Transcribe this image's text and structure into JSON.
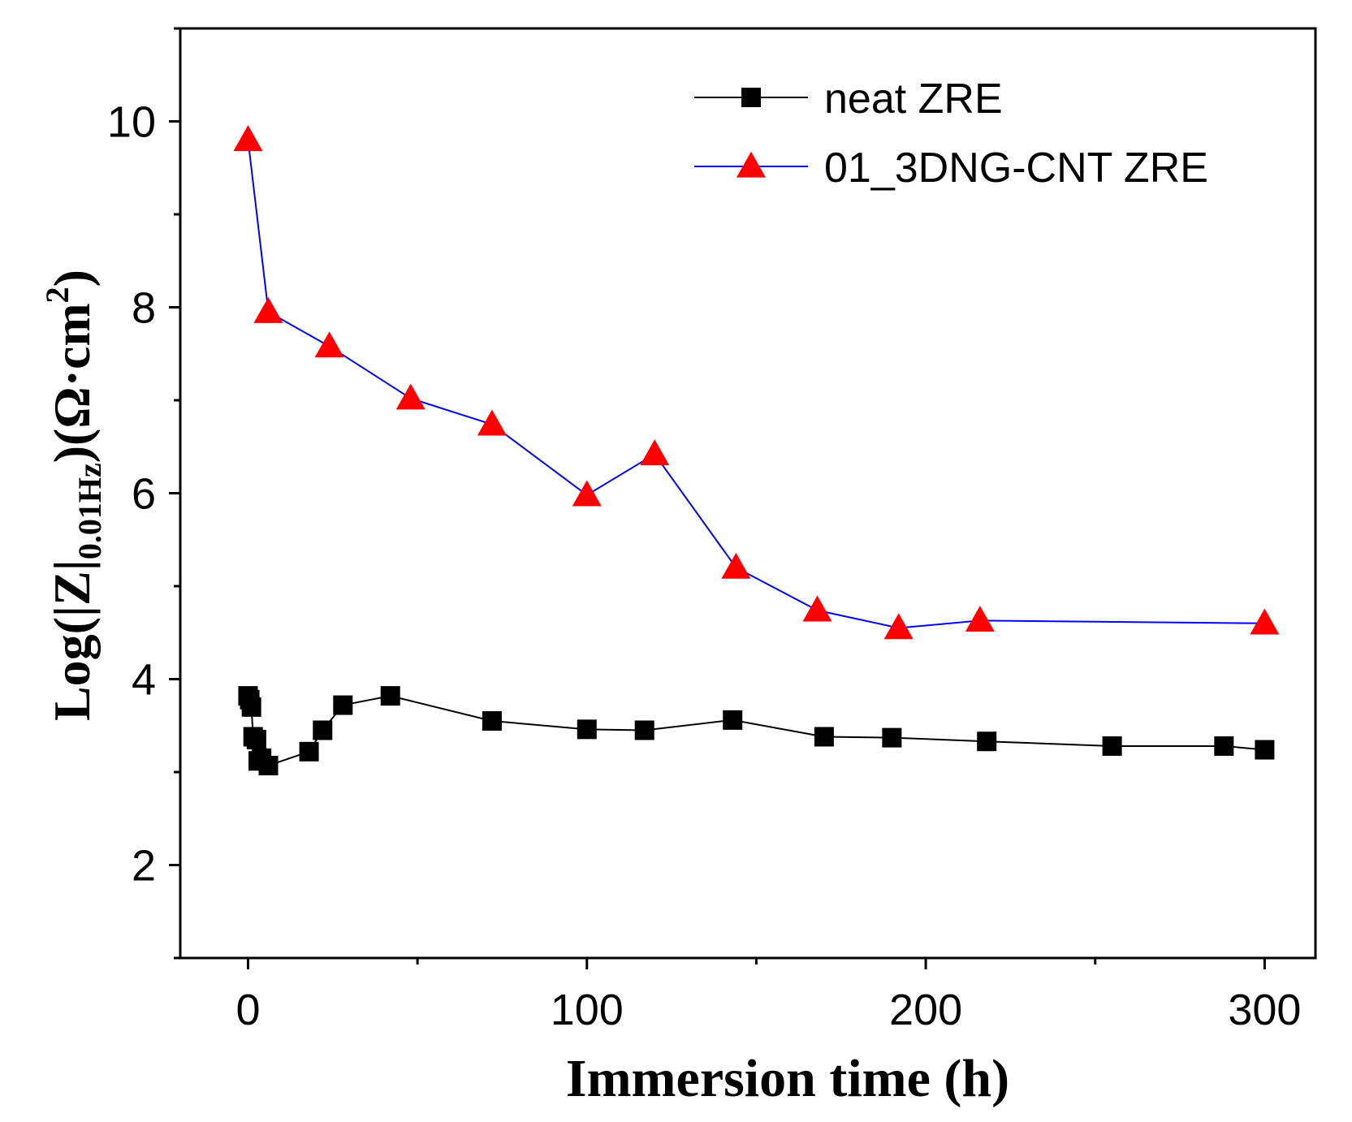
{
  "chart_data": {
    "type": "line",
    "title": "",
    "xlabel": "Immersion time (h)",
    "ylabel": {
      "prefix": "Log(|Z|",
      "subscript": "0.01Hz",
      "middle": ")(Ω·cm",
      "superscript": "2",
      "suffix": ")"
    },
    "xlim": [
      -20,
      315
    ],
    "ylim": [
      1,
      11
    ],
    "xticks": [
      0,
      100,
      200,
      300
    ],
    "xtick_labels": [
      "0",
      "100",
      "200",
      "300"
    ],
    "yticks": [
      2,
      4,
      6,
      8,
      10
    ],
    "ytick_labels": [
      "2",
      "4",
      "6",
      "8",
      "10"
    ],
    "grid": false,
    "legend_position": "top-right",
    "series": [
      {
        "name": "neat ZRE",
        "line_color": "#000000",
        "marker": "square",
        "marker_color": "#000000",
        "x": [
          0,
          0.5,
          1,
          1.5,
          2.5,
          3,
          4,
          6,
          18,
          22,
          28,
          42,
          72,
          100,
          117,
          143,
          170,
          190,
          218,
          255,
          288,
          300
        ],
        "y": [
          3.82,
          3.78,
          3.7,
          3.38,
          3.35,
          3.12,
          3.15,
          3.07,
          3.22,
          3.45,
          3.72,
          3.82,
          3.55,
          3.46,
          3.45,
          3.56,
          3.38,
          3.37,
          3.33,
          3.28,
          3.28,
          3.24
        ]
      },
      {
        "name": "01_3DNG-CNT ZRE",
        "line_color": "#0000ff",
        "marker": "triangle",
        "marker_color": "#ff0000",
        "x": [
          0,
          6,
          24,
          48,
          72,
          100,
          120,
          144,
          168,
          192,
          216,
          300
        ],
        "y": [
          9.8,
          7.95,
          7.58,
          7.02,
          6.74,
          5.98,
          6.42,
          5.2,
          4.74,
          4.55,
          4.63,
          4.6
        ]
      }
    ]
  }
}
